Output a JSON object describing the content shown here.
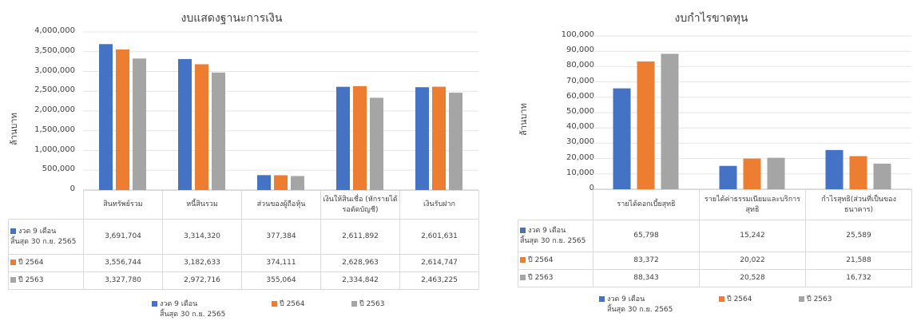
{
  "colors": {
    "s0": "#4472c4",
    "s1": "#ed7d31",
    "s2": "#a5a5a5"
  },
  "chart_data": [
    {
      "type": "bar",
      "title": "งบแสดงฐานะการเงิน",
      "ylabel": "ล้านบาท",
      "ylim": [
        0,
        4000000
      ],
      "yticks": [
        "4,000,000",
        "3,500,000",
        "3,000,000",
        "2,500,000",
        "2,000,000",
        "1,500,000",
        "1,000,000",
        "500,000",
        "0"
      ],
      "categories": [
        "สินทรัพย์รวม",
        "หนี้สินรวม",
        "ส่วนของผู้ถือหุ้น",
        "เงินให้สินเชื่อ (หักรายได้รอตัดบัญชี)",
        "เงินรับฝาก"
      ],
      "series": [
        {
          "name": "งวด 9 เดือน สิ้นสุด 30 ก.ย. 2565",
          "values": [
            3691704,
            3314320,
            377384,
            2611892,
            2601631
          ],
          "labels": [
            "3,691,704",
            "3,314,320",
            "377,384",
            "2,611,892",
            "2,601,631"
          ]
        },
        {
          "name": "ปี 2564",
          "values": [
            3556744,
            3182633,
            374111,
            2628963,
            2614747
          ],
          "labels": [
            "3,556,744",
            "3,182,633",
            "374,111",
            "2,628,963",
            "2,614,747"
          ]
        },
        {
          "name": "ปี 2563",
          "values": [
            3327780,
            2972716,
            355064,
            2334842,
            2463225
          ],
          "labels": [
            "3,327,780",
            "2,972,716",
            "355,064",
            "2,334,842",
            "2,463,225"
          ]
        }
      ],
      "legend": "bottom"
    },
    {
      "type": "bar",
      "title": "งบกำไรขาดทุน",
      "ylabel": "ล้านบาท",
      "ylim": [
        0,
        100000
      ],
      "yticks": [
        "100,000",
        "90,000",
        "80,000",
        "70,000",
        "60,000",
        "50,000",
        "40,000",
        "30,000",
        "20,000",
        "10,000",
        "0"
      ],
      "categories": [
        "รายได้ดอกเบี้ยสุทธิ",
        "รายได้ค่าธรรมเนียมและบริการสุทธิ",
        "กำไรสุทธิ(ส่วนที่เป็นของธนาคาร)"
      ],
      "series": [
        {
          "name": "งวด 9 เดือน สิ้นสุด 30 ก.ย. 2565",
          "values": [
            65798,
            15242,
            25589
          ],
          "labels": [
            "65,798",
            "15,242",
            "25,589"
          ]
        },
        {
          "name": "ปี 2564",
          "values": [
            83372,
            20022,
            21588
          ],
          "labels": [
            "83,372",
            "20,022",
            "21,588"
          ]
        },
        {
          "name": "ปี 2563",
          "values": [
            88343,
            20528,
            16732
          ],
          "labels": [
            "88,343",
            "20,528",
            "16,732"
          ]
        }
      ],
      "legend": "bottom"
    }
  ],
  "legend_items": [
    {
      "line1": "งวด 9 เดือน",
      "line2": "สิ้นสุด 30 ก.ย. 2565"
    },
    {
      "line1": "ปี 2564",
      "line2": ""
    },
    {
      "line1": "ปี 2563",
      "line2": ""
    }
  ],
  "table_row_headers": [
    {
      "line1": "งวด 9 เดือน",
      "line2": "สิ้นสุด 30 ก.ย. 2565"
    },
    {
      "line1": "ปี 2564",
      "line2": ""
    },
    {
      "line1": "ปี 2563",
      "line2": ""
    }
  ]
}
